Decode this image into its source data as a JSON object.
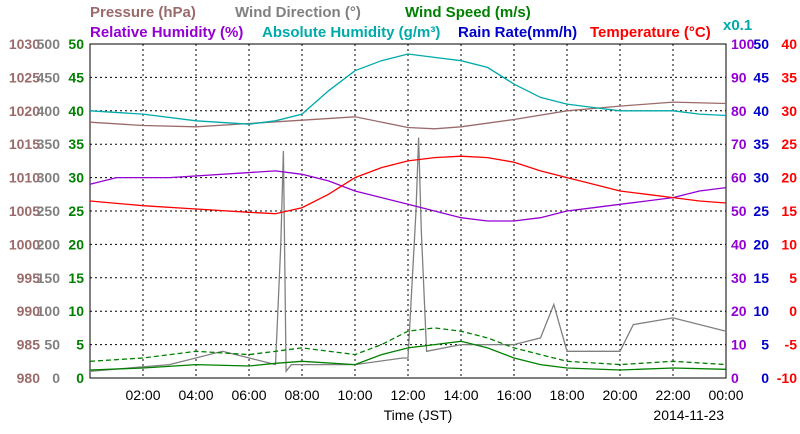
{
  "chart_data": {
    "type": "line",
    "xlabel": "Time (JST)",
    "date_label": "2014-11-23",
    "x_ticks": [
      "02:00",
      "04:00",
      "06:00",
      "08:00",
      "10:00",
      "12:00",
      "14:00",
      "16:00",
      "18:00",
      "20:00",
      "22:00",
      "00:00"
    ],
    "xlim": [
      "00:00",
      "24:00"
    ],
    "grid": true,
    "legend": {
      "row1": [
        {
          "name": "Pressure (hPa)",
          "color": "#9b6b6b"
        },
        {
          "name": "Wind Direction (°)",
          "color": "#808080"
        },
        {
          "name": "Wind Speed (m/s)",
          "color": "#008000"
        }
      ],
      "row2": [
        {
          "name": "Relative Humidity (%)",
          "color": "#9400d3"
        },
        {
          "name": "Absolute Humidity (g/m³)",
          "color": "#00aaaa"
        },
        {
          "name": "Rain Rate(mm/h)",
          "color": "#0000cc"
        },
        {
          "name": "Temperature (°C)",
          "color": "#ff0000"
        }
      ],
      "scale_note": "x0.1"
    },
    "axes": {
      "pressure": {
        "color": "#9b6b6b",
        "ylim": [
          980,
          1030
        ],
        "ticks": [
          "1030",
          "1025",
          "1020",
          "1015",
          "1010",
          "1005",
          "1000",
          "995",
          "990",
          "985",
          "980"
        ]
      },
      "wind_direction": {
        "color": "#808080",
        "ylim": [
          0,
          500
        ],
        "ticks": [
          "500",
          "450",
          "400",
          "350",
          "300",
          "250",
          "200",
          "150",
          "100",
          "50",
          "0"
        ]
      },
      "wind_speed": {
        "color": "#008000",
        "ylim": [
          0,
          50
        ],
        "ticks": [
          "50",
          "45",
          "40",
          "35",
          "30",
          "25",
          "20",
          "15",
          "10",
          "5",
          "0"
        ]
      },
      "relative_humidity": {
        "color": "#9400d3",
        "ylim": [
          0,
          100
        ],
        "ticks": [
          "100",
          "90",
          "80",
          "70",
          "60",
          "50",
          "40",
          "30",
          "20",
          "10",
          "0"
        ]
      },
      "rain_rate": {
        "color": "#0000cc",
        "ylim": [
          0,
          50
        ],
        "ticks": [
          "50",
          "45",
          "40",
          "35",
          "30",
          "25",
          "20",
          "15",
          "10",
          "5",
          "0"
        ]
      },
      "temperature": {
        "color": "#ff0000",
        "ylim": [
          -10,
          40
        ],
        "ticks": [
          "40",
          "35",
          "30",
          "25",
          "20",
          "15",
          "10",
          "5",
          "0",
          "-5",
          "-10"
        ]
      }
    },
    "series": [
      {
        "name": "Pressure (hPa)",
        "axis": "pressure",
        "color": "#9b6b6b",
        "x": [
          0,
          2,
          4,
          6,
          8,
          10,
          12,
          13,
          14,
          16,
          18,
          20,
          22,
          24
        ],
        "y": [
          1018.3,
          1017.8,
          1017.6,
          1018.1,
          1018.6,
          1019.1,
          1017.5,
          1017.3,
          1017.6,
          1018.7,
          1020,
          1020.7,
          1021.3,
          1021.1
        ]
      },
      {
        "name": "Wind Direction (°)",
        "axis": "wind_direction",
        "color": "#808080",
        "x": [
          0,
          3,
          5,
          7,
          7.2,
          7.3,
          7.4,
          7.6,
          10,
          11.8,
          12,
          12.3,
          12.4,
          12.5,
          12.7,
          14,
          15.5,
          16,
          17,
          17.5,
          18,
          20,
          20.5,
          22,
          24
        ],
        "y": [
          10,
          20,
          40,
          20,
          200,
          340,
          10,
          20,
          20,
          30,
          30,
          250,
          360,
          220,
          40,
          50,
          50,
          50,
          60,
          110,
          40,
          40,
          80,
          90,
          70
        ]
      },
      {
        "name": "Wind Speed (m/s)",
        "axis": "wind_speed",
        "color": "#008000",
        "x": [
          0,
          2,
          4,
          6,
          7,
          8,
          10,
          11,
          12,
          13,
          14,
          15,
          16,
          17,
          18,
          20,
          22,
          24
        ],
        "y": [
          1.2,
          1.5,
          2,
          1.8,
          2.2,
          2.5,
          2,
          3.5,
          4.5,
          5,
          5.5,
          4.5,
          3,
          2,
          1.5,
          1.2,
          1.5,
          1.3
        ]
      },
      {
        "name": "Wind Speed (m/s) gust",
        "axis": "wind_speed",
        "color": "#008000",
        "dashed": true,
        "x": [
          0,
          2,
          4,
          6,
          7,
          8,
          10,
          11,
          12,
          13,
          14,
          15,
          16,
          17,
          18,
          20,
          22,
          24
        ],
        "y": [
          2.5,
          3,
          4,
          3.5,
          4,
          4.5,
          3.5,
          5,
          7,
          7.5,
          7,
          6,
          4.5,
          3.5,
          2.5,
          2,
          2.5,
          2
        ]
      },
      {
        "name": "Relative Humidity (%)",
        "axis": "relative_humidity",
        "color": "#9400d3",
        "x": [
          0,
          1,
          3,
          7,
          8,
          9,
          10,
          11,
          12,
          13,
          14,
          15,
          16,
          17,
          18,
          19,
          20,
          21,
          22,
          23,
          24
        ],
        "y": [
          58,
          60,
          60,
          62,
          61,
          59,
          56,
          54,
          52,
          50,
          48,
          47,
          47,
          48,
          50,
          51,
          52,
          53,
          54,
          56,
          57
        ]
      },
      {
        "name": "Absolute Humidity (g/m³)",
        "axis": "wind_speed",
        "color": "#00aaaa",
        "x": [
          0,
          2,
          4,
          6,
          7,
          8,
          9,
          10,
          11,
          12,
          13,
          14,
          15,
          16,
          17,
          18,
          19,
          20,
          21,
          22,
          23,
          24
        ],
        "y": [
          40,
          39.5,
          38.5,
          38,
          38.5,
          39.5,
          43,
          46,
          47.5,
          48.5,
          48,
          47.5,
          46.5,
          44,
          42,
          41,
          40.5,
          40,
          40,
          40,
          39.5,
          39.3
        ]
      },
      {
        "name": "Temperature (°C)",
        "axis": "temperature",
        "color": "#ff0000",
        "x": [
          0,
          2,
          4,
          6,
          7,
          8,
          9,
          10,
          11,
          12,
          13,
          14,
          15,
          16,
          17,
          18,
          19,
          20,
          21,
          22,
          23,
          24
        ],
        "y": [
          16.5,
          15.8,
          15.3,
          14.8,
          14.6,
          15.5,
          17.5,
          20,
          21.5,
          22.5,
          23,
          23.2,
          23,
          22.3,
          21,
          20,
          19,
          18,
          17.5,
          17,
          16.5,
          16.2
        ]
      }
    ]
  }
}
